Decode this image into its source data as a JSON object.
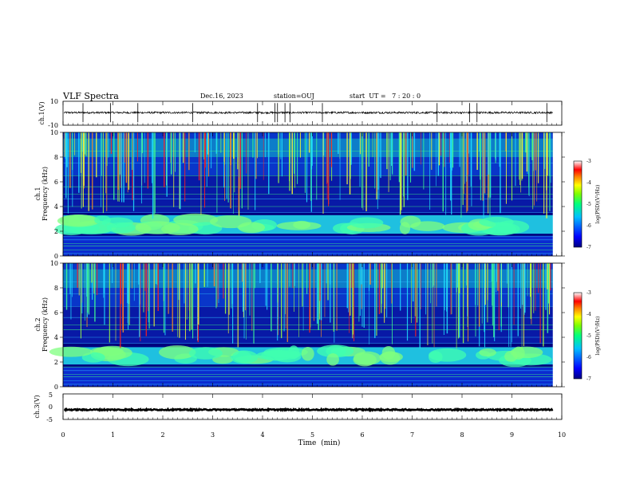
{
  "header": {
    "title": "VLF Spectra",
    "date": "Dec.16, 2023",
    "station": "station=OUJ",
    "start_ut": "start  UT =   7 : 20 : 0"
  },
  "chart_data": [
    {
      "type": "line",
      "panel": "ch1-waveform",
      "ylabel": "ch.1(V)",
      "ylim": [
        -10,
        10
      ],
      "yticks": [
        10,
        -10
      ],
      "xlim": [
        0,
        10
      ],
      "mean_value": 0.5,
      "spike_times": [
        0.4,
        0.95,
        1.5,
        2.6,
        3.9,
        4.25,
        4.3,
        4.45,
        4.55,
        5.2,
        7.5,
        8.15,
        8.3,
        9.7
      ]
    },
    {
      "type": "heatmap",
      "panel": "ch1-spectrogram",
      "ylabel_line1": "ch.1",
      "ylabel_line2": "Frequency (kHz)",
      "ylim": [
        0,
        10
      ],
      "yticks": [
        0,
        2,
        4,
        6,
        8,
        10
      ],
      "xlim": [
        0,
        10
      ],
      "hiss_band_khz": [
        1.8,
        3.3
      ],
      "colorbar": {
        "label": "log(PSD)(V²/Hz)",
        "range": [
          -7,
          -3
        ],
        "ticks": [
          -3,
          -4,
          -5,
          -6,
          -7
        ]
      }
    },
    {
      "type": "heatmap",
      "panel": "ch2-spectrogram",
      "ylabel_line1": "ch.2",
      "ylabel_line2": "Frequency (kHz)",
      "ylim": [
        0,
        10
      ],
      "yticks": [
        0,
        2,
        4,
        6,
        8,
        10
      ],
      "xlim": [
        0,
        10
      ],
      "hiss_band_khz": [
        1.8,
        3.2
      ],
      "colorbar": {
        "label": "log(PSD)(V²/Hz)",
        "range": [
          -7,
          -3
        ],
        "ticks": [
          -3,
          -4,
          -5,
          -6,
          -7
        ]
      }
    },
    {
      "type": "line",
      "panel": "ch3-waveform",
      "ylabel": "ch.3(V)",
      "ylim": [
        -5,
        5
      ],
      "yticks": [
        5,
        0,
        -5
      ],
      "xlim": [
        0,
        10
      ],
      "mean_value": -1.2
    }
  ],
  "xaxis": {
    "label": "Time  (min)",
    "ticks": [
      0,
      1,
      2,
      3,
      4,
      5,
      6,
      7,
      8,
      9,
      10
    ]
  },
  "colors": {
    "accent": "#000000",
    "colormap": [
      "#00007f",
      "#0000ff",
      "#007fff",
      "#00ffff",
      "#7fff7f",
      "#ffff00",
      "#ff7f00",
      "#ff0000",
      "#ffffff"
    ]
  }
}
